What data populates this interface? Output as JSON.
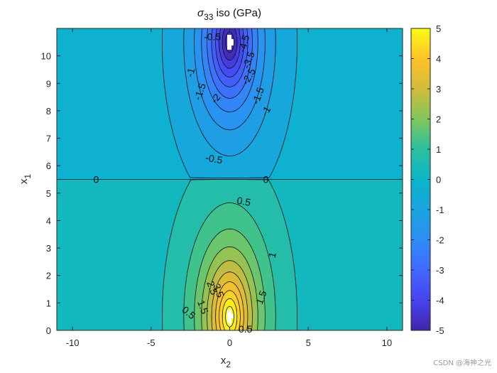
{
  "chart_data": {
    "type": "heatmap",
    "title": "σ33 iso (GPa)",
    "title_parts": {
      "sigma": "σ",
      "sub": "33",
      "rest": " iso (GPa)"
    },
    "xlabel_parts": {
      "base": "x",
      "sub": "2"
    },
    "ylabel_parts": {
      "base": "x",
      "sub": "1"
    },
    "xlim": [
      -11,
      11
    ],
    "ylim": [
      0,
      11
    ],
    "xticks": [
      -10,
      -5,
      0,
      5,
      10
    ],
    "yticks": [
      0,
      1,
      2,
      3,
      4,
      5,
      6,
      7,
      8,
      9,
      10
    ],
    "colorbar": {
      "limits": [
        -5,
        5
      ],
      "ticks": [
        5,
        4,
        3,
        2,
        1,
        0,
        -1,
        -2,
        -3,
        -4,
        -5
      ],
      "colormap": "parula"
    },
    "interface_y": 5.5,
    "field": {
      "background_upper": -0.25,
      "background_lower": 0.25,
      "sources": [
        {
          "x": 0,
          "y": 10.5,
          "sign": -1
        },
        {
          "x": 0,
          "y": 0.5,
          "sign": 1
        }
      ]
    },
    "contour_levels": [
      -5,
      -4.5,
      -4,
      -3.5,
      -3,
      -2.5,
      -2,
      -1.5,
      -1,
      -0.5,
      0,
      0.5,
      1,
      1.5,
      2,
      2.5,
      3,
      3.5,
      4,
      4.5,
      5
    ],
    "contour_labels": [
      {
        "text": "-0.5",
        "x": -1.1,
        "y": 10.7,
        "angle": 0
      },
      {
        "text": "-4.5",
        "x": 0.9,
        "y": 10.45,
        "angle": -75
      },
      {
        "text": "-3.5",
        "x": 1.2,
        "y": 9.85,
        "angle": -70
      },
      {
        "text": "-2.5",
        "x": 1.2,
        "y": 9.25,
        "angle": -60
      },
      {
        "text": "-1",
        "x": -2.5,
        "y": 9.4,
        "angle": -75
      },
      {
        "text": "-1.5",
        "x": -1.9,
        "y": 8.7,
        "angle": -70
      },
      {
        "text": "-2",
        "x": -0.9,
        "y": 8.45,
        "angle": -50
      },
      {
        "text": "-1.5",
        "x": 1.8,
        "y": 8.55,
        "angle": -70
      },
      {
        "text": "-1",
        "x": 2.3,
        "y": 8.0,
        "angle": -60
      },
      {
        "text": "-0.5",
        "x": -1.0,
        "y": 6.25,
        "angle": 10
      },
      {
        "text": "0",
        "x": -8.5,
        "y": 5.5,
        "angle": 0
      },
      {
        "text": "0",
        "x": 2.3,
        "y": 5.5,
        "angle": 0
      },
      {
        "text": "0.5",
        "x": 0.9,
        "y": 4.7,
        "angle": 10
      },
      {
        "text": "1",
        "x": 2.7,
        "y": 2.75,
        "angle": -75
      },
      {
        "text": "1.5",
        "x": 2.0,
        "y": 1.2,
        "angle": -70
      },
      {
        "text": "1.5",
        "x": -1.7,
        "y": 0.85,
        "angle": 70
      },
      {
        "text": "0.5",
        "x": -2.6,
        "y": 0.65,
        "angle": 40
      },
      {
        "text": "2.5",
        "x": -1.1,
        "y": 1.55,
        "angle": 70
      },
      {
        "text": "3.5",
        "x": -0.7,
        "y": 1.45,
        "angle": 70
      },
      {
        "text": "0.5",
        "x": 1.0,
        "y": 0.05,
        "angle": 0
      }
    ]
  },
  "watermark": "CSDN @海神之光"
}
